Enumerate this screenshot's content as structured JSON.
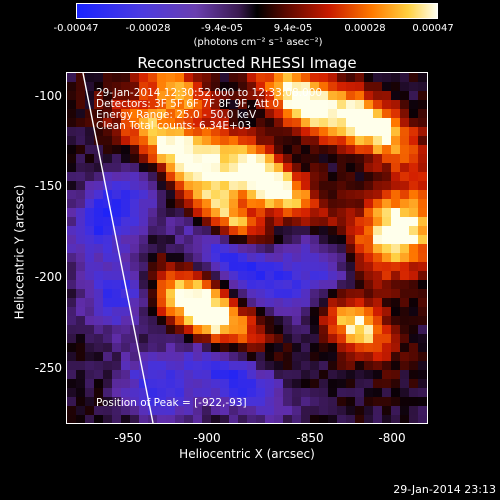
{
  "colorbar": {
    "tick_labels": [
      "-0.00047",
      "-0.00028",
      "-9.4e-05",
      "9.4e-05",
      "0.00028",
      "0.00047"
    ],
    "unit_label": "(photons cm⁻² s⁻¹ asec⁻²)"
  },
  "title": "Reconstructed RHESSI Image",
  "overlay": {
    "time_range": "29-Jan-2014 12:30:52.000 to 12:33:08.000",
    "detectors": "Detectors: 3F 5F 6F 7F 8F 9F, Att 0",
    "energy": "Energy Range: 25.0 - 50.0 keV",
    "clean": "Clean    Total counts: 6.34E+03",
    "peak": "Position of Peak = [-922,-93]"
  },
  "axes": {
    "xlabel": "Heliocentric X (arcsec)",
    "ylabel": "Heliocentric Y (arcsec)",
    "xticks": [
      "-950",
      "-900",
      "-850",
      "-800"
    ],
    "yticks": [
      "-100",
      "-150",
      "-200",
      "-250"
    ]
  },
  "timestamp": "29-Jan-2014 23:13",
  "colors": {
    "frame": "#ffffff",
    "limb": "#ffffff"
  }
}
